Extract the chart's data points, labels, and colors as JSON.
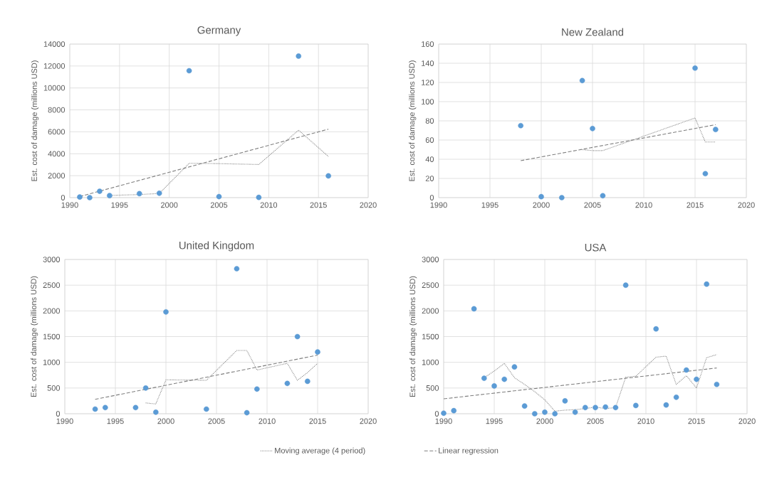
{
  "chart_data": [
    {
      "type": "scatter",
      "title": "Germany",
      "ylabel": "Est. cost of damage (millions USD)",
      "xlim": [
        1990,
        2020
      ],
      "xticks": [
        1990,
        1995,
        2000,
        2005,
        2010,
        2015,
        2020
      ],
      "ylim": [
        0,
        14000
      ],
      "yticks": [
        0,
        2000,
        4000,
        6000,
        8000,
        10000,
        12000,
        14000
      ],
      "grid": true,
      "series": [
        {
          "color": "#5b9bd5",
          "marker": "circle",
          "x": [
            1991,
            1992,
            1993,
            1994,
            1997,
            1999,
            2002,
            2005,
            2009,
            2013,
            2016
          ],
          "values": [
            50,
            0,
            580,
            180,
            360,
            400,
            11570,
            90,
            20,
            12900,
            1980
          ]
        },
        {
          "type": "line",
          "line_style": "dotted",
          "marker": "none",
          "color": "#7f7f7f",
          "x": [
            1994,
            1997,
            1999,
            2002,
            2005,
            2009,
            2013,
            2016
          ],
          "values": [
            200,
            280,
            380,
            3130,
            3100,
            3020,
            6150,
            3750
          ]
        },
        {
          "type": "line",
          "line_style": "dashed",
          "marker": "none",
          "color": "#7f7f7f",
          "x": [
            1991,
            2016
          ],
          "values": [
            100,
            6240
          ]
        }
      ]
    },
    {
      "type": "scatter",
      "title": "New Zealand",
      "ylabel": "Est. cost of damage (millions USD)",
      "xlim": [
        1990,
        2020
      ],
      "xticks": [
        1990,
        1995,
        2000,
        2005,
        2010,
        2015,
        2020
      ],
      "ylim": [
        0,
        160
      ],
      "yticks": [
        0,
        20,
        40,
        60,
        80,
        100,
        120,
        140,
        160
      ],
      "grid": true,
      "series": [
        {
          "color": "#5b9bd5",
          "marker": "circle",
          "x": [
            1998,
            2000,
            2002,
            2004,
            2005,
            2006,
            2015,
            2016,
            2017
          ],
          "values": [
            75,
            1,
            0,
            122,
            72,
            2,
            135,
            25,
            71
          ]
        },
        {
          "type": "line",
          "line_style": "dotted",
          "marker": "none",
          "color": "#7f7f7f",
          "x": [
            2004,
            2005,
            2006,
            2015,
            2016,
            2017
          ],
          "values": [
            50,
            49,
            49,
            83,
            58,
            58
          ]
        },
        {
          "type": "line",
          "line_style": "dashed",
          "marker": "none",
          "color": "#7f7f7f",
          "x": [
            1998,
            2017
          ],
          "values": [
            38.5,
            76
          ]
        }
      ]
    },
    {
      "type": "scatter",
      "title": "United Kingdom",
      "ylabel": "Est. cost of damage (millions USD)",
      "xlim": [
        1990,
        2020
      ],
      "xticks": [
        1990,
        1995,
        2000,
        2005,
        2010,
        2015,
        2020
      ],
      "ylim": [
        0,
        3000
      ],
      "yticks": [
        0,
        500,
        1000,
        1500,
        2000,
        2500,
        3000
      ],
      "grid": true,
      "series": [
        {
          "color": "#5b9bd5",
          "marker": "circle",
          "x": [
            1993,
            1994,
            1997,
            1998,
            1999,
            2000,
            2004,
            2007,
            2008,
            2009,
            2012,
            2013,
            2014,
            2015
          ],
          "values": [
            90,
            120,
            120,
            500,
            30,
            1980,
            90,
            2820,
            20,
            480,
            590,
            1500,
            630,
            1200
          ]
        },
        {
          "type": "line",
          "line_style": "dotted",
          "marker": "none",
          "color": "#7f7f7f",
          "x": [
            1998,
            1999,
            2000,
            2004,
            2007,
            2008,
            2009,
            2012,
            2013,
            2014,
            2015
          ],
          "values": [
            210,
            190,
            660,
            650,
            1230,
            1230,
            850,
            980,
            650,
            800,
            980
          ]
        },
        {
          "type": "line",
          "line_style": "dashed",
          "marker": "none",
          "color": "#7f7f7f",
          "x": [
            1993,
            2015
          ],
          "values": [
            280,
            1140
          ]
        }
      ]
    },
    {
      "type": "scatter",
      "title": "USA",
      "ylabel": "Est. cost of damage (millions USD)",
      "xlim": [
        1990,
        2020
      ],
      "xticks": [
        1990,
        1995,
        2000,
        2005,
        2010,
        2015,
        2020
      ],
      "ylim": [
        0,
        3000
      ],
      "yticks": [
        0,
        500,
        1000,
        1500,
        2000,
        2500,
        3000
      ],
      "grid": true,
      "legend": "bottom",
      "series": [
        {
          "color": "#5b9bd5",
          "marker": "circle",
          "x": [
            1990,
            1991,
            1993,
            1994,
            1995,
            1996,
            1997,
            1998,
            1999,
            2000,
            2001,
            2002,
            2003,
            2004,
            2005,
            2006,
            2007,
            2008,
            2009,
            2011,
            2012,
            2013,
            2014,
            2015,
            2016,
            2017
          ],
          "values": [
            10,
            60,
            2040,
            690,
            540,
            670,
            910,
            150,
            0,
            30,
            0,
            250,
            30,
            120,
            120,
            130,
            120,
            2500,
            160,
            1650,
            170,
            320,
            850,
            670,
            2520,
            570
          ]
        },
        {
          "type": "line",
          "name": "Moving average (4 period)",
          "line_style": "dotted",
          "marker": "none",
          "color": "#7f7f7f",
          "x": [
            1994,
            1995,
            1996,
            1997,
            1998,
            1999,
            2000,
            2001,
            2002,
            2003,
            2004,
            2005,
            2006,
            2007,
            2008,
            2009,
            2011,
            2012,
            2013,
            2014,
            2015,
            2016,
            2017
          ],
          "values": [
            700,
            830,
            980,
            700,
            570,
            430,
            270,
            50,
            70,
            80,
            100,
            130,
            100,
            120,
            710,
            730,
            1100,
            1120,
            570,
            740,
            500,
            1090,
            1150
          ]
        },
        {
          "type": "line",
          "name": "Linear regression",
          "line_style": "dashed",
          "marker": "none",
          "color": "#7f7f7f",
          "x": [
            1990,
            2017
          ],
          "values": [
            290,
            890
          ]
        }
      ]
    }
  ]
}
